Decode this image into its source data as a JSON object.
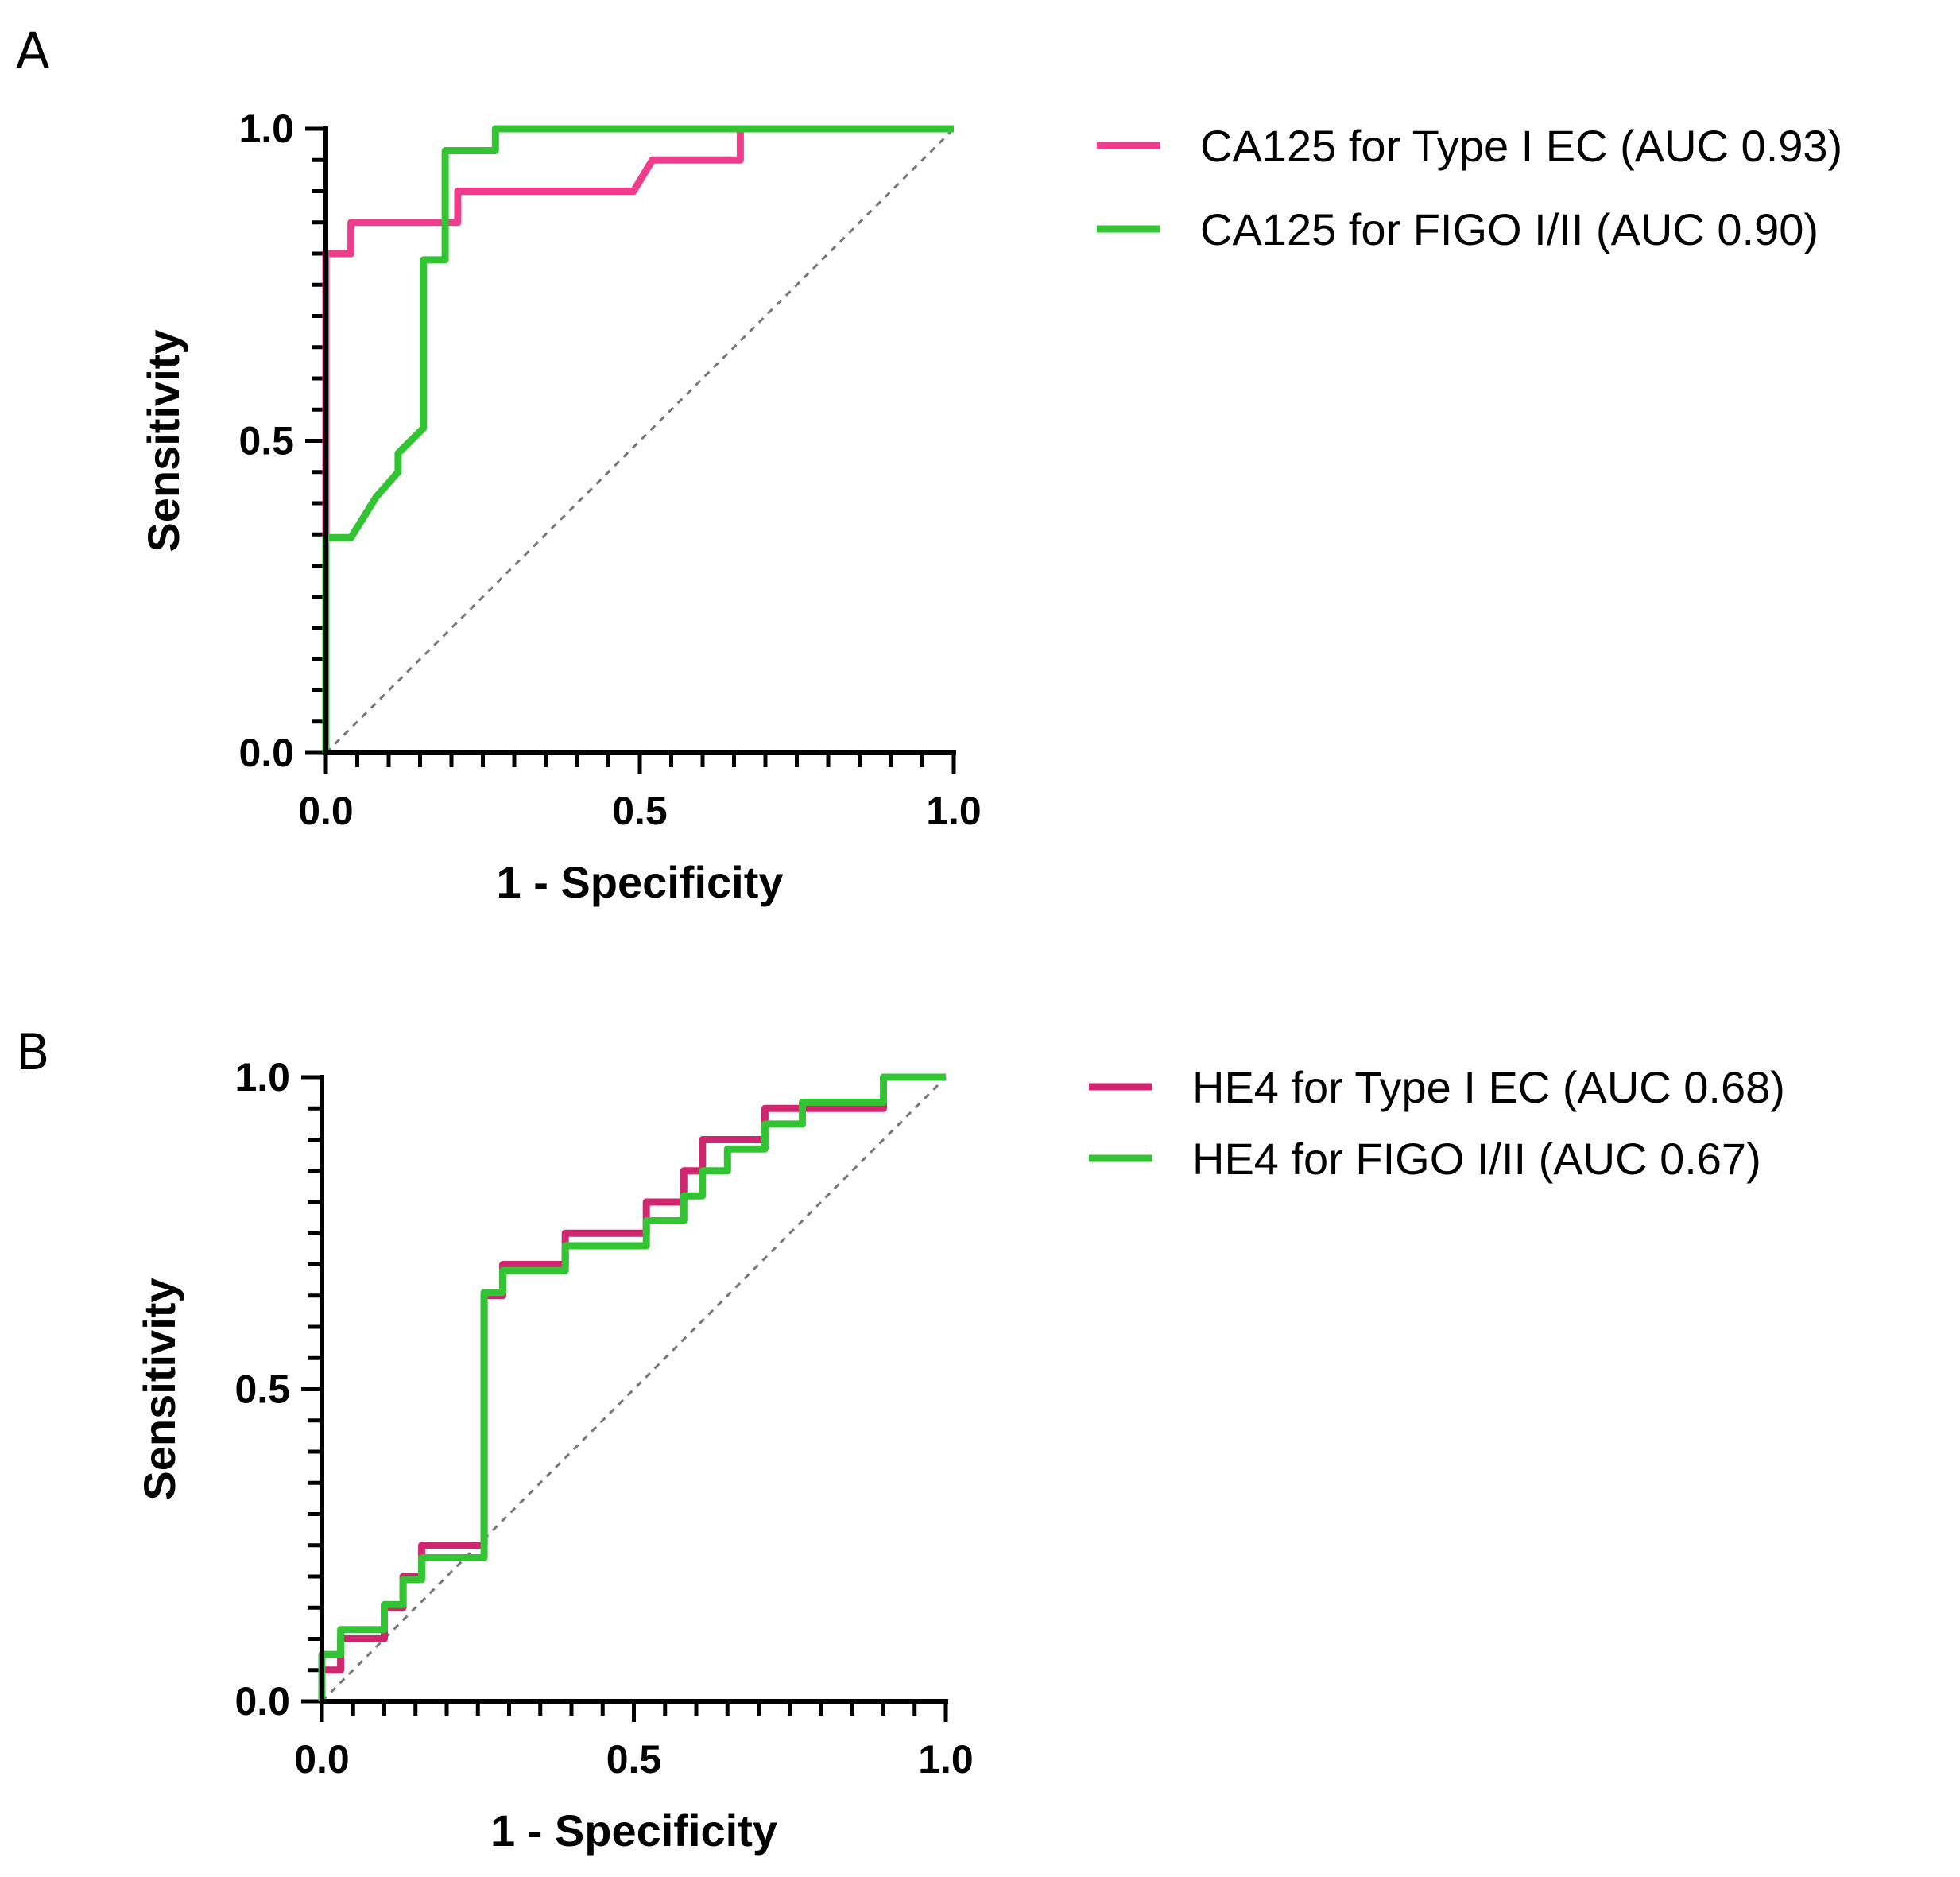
{
  "chart_data": [
    {
      "type": "line",
      "panel": "A",
      "xlabel": "1 - Specificity",
      "ylabel": "Sensitivity",
      "xlim": [
        0,
        1
      ],
      "ylim": [
        0,
        1
      ],
      "xticks": [
        "0.0",
        "0.5",
        "1.0"
      ],
      "yticks": [
        "0.0",
        "0.5",
        "1.0"
      ],
      "reference_line": "diagonal",
      "series": [
        {
          "name": "CA125 for Type I EC (AUC 0.93)",
          "color": "#f03c8c",
          "x": [
            0,
            0,
            0,
            0,
            0.04,
            0.04,
            0.21,
            0.21,
            0.49,
            0.52,
            0.66,
            0.66,
            1.0
          ],
          "y": [
            0,
            0.35,
            0.8,
            0.8,
            0.8,
            0.85,
            0.85,
            0.9,
            0.9,
            0.95,
            0.95,
            1.0,
            1.0
          ]
        },
        {
          "name": "CA125 for FIGO I/II (AUC 0.90)",
          "color": "#33c433",
          "x": [
            0,
            0,
            0.04,
            0.08,
            0.115,
            0.115,
            0.155,
            0.155,
            0.19,
            0.19,
            0.27,
            0.27,
            1.0
          ],
          "y": [
            0,
            0.345,
            0.345,
            0.41,
            0.45,
            0.48,
            0.52,
            0.79,
            0.79,
            0.965,
            0.965,
            1.0,
            1.0
          ]
        }
      ]
    },
    {
      "type": "line",
      "panel": "B",
      "xlabel": "1 - Specificity",
      "ylabel": "Sensitivity",
      "xlim": [
        0,
        1
      ],
      "ylim": [
        0,
        1
      ],
      "xticks": [
        "0.0",
        "0.5",
        "1.0"
      ],
      "yticks": [
        "0.0",
        "0.5",
        "1.0"
      ],
      "reference_line": "diagonal",
      "series": [
        {
          "name": "HE4 for Type I EC (AUC 0.68)",
          "color": "#d0266f",
          "x": [
            0,
            0,
            0.03,
            0.03,
            0.1,
            0.1,
            0.13,
            0.13,
            0.16,
            0.16,
            0.26,
            0.26,
            0.29,
            0.29,
            0.39,
            0.39,
            0.52,
            0.52,
            0.58,
            0.58,
            0.61,
            0.61,
            0.71,
            0.71,
            0.9,
            0.9,
            1.0
          ],
          "y": [
            0,
            0.05,
            0.05,
            0.1,
            0.1,
            0.15,
            0.15,
            0.2,
            0.2,
            0.25,
            0.25,
            0.65,
            0.65,
            0.7,
            0.7,
            0.75,
            0.75,
            0.8,
            0.8,
            0.85,
            0.85,
            0.9,
            0.9,
            0.95,
            0.95,
            1.0,
            1.0
          ]
        },
        {
          "name": "HE4 for FIGO I/II (AUC 0.67)",
          "color": "#33c433",
          "x": [
            0,
            0,
            0.03,
            0.03,
            0.1,
            0.1,
            0.13,
            0.13,
            0.16,
            0.16,
            0.26,
            0.26,
            0.29,
            0.29,
            0.39,
            0.39,
            0.52,
            0.52,
            0.58,
            0.58,
            0.61,
            0.61,
            0.65,
            0.65,
            0.71,
            0.71,
            0.77,
            0.77,
            0.9,
            0.9,
            1.0
          ],
          "y": [
            0,
            0.075,
            0.075,
            0.115,
            0.115,
            0.155,
            0.155,
            0.195,
            0.195,
            0.23,
            0.23,
            0.655,
            0.655,
            0.69,
            0.69,
            0.73,
            0.73,
            0.77,
            0.77,
            0.81,
            0.81,
            0.85,
            0.85,
            0.885,
            0.885,
            0.925,
            0.925,
            0.96,
            0.96,
            1.0,
            1.0
          ]
        }
      ]
    }
  ]
}
